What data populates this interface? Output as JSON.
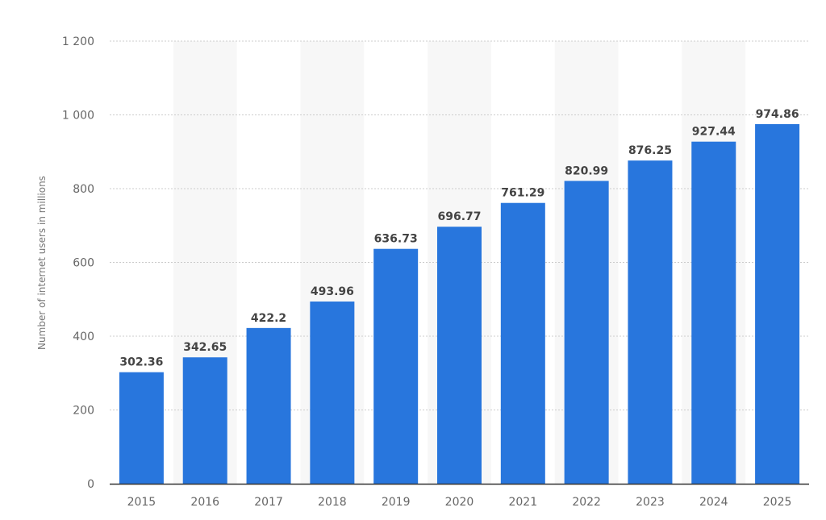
{
  "chart_data": {
    "type": "bar",
    "title": "",
    "xlabel": "",
    "ylabel": "Number of internet users in millions",
    "ylim": [
      0,
      1200
    ],
    "yticks": [
      0,
      200,
      400,
      600,
      800,
      1000,
      1200
    ],
    "ytick_labels": [
      "0",
      "200",
      "400",
      "600",
      "800",
      "1 000",
      "1 200"
    ],
    "grid": true,
    "categories": [
      "2015",
      "2016",
      "2017",
      "2018",
      "2019",
      "2020",
      "2021",
      "2022",
      "2023",
      "2024",
      "2025"
    ],
    "values": [
      302.36,
      342.65,
      422.2,
      493.96,
      636.73,
      696.77,
      761.29,
      820.99,
      876.25,
      927.44,
      974.86
    ],
    "data_labels": [
      "302.36",
      "342.65",
      "422.2",
      "493.96",
      "636.73",
      "696.77",
      "761.29",
      "820.99",
      "876.25",
      "927.44",
      "974.86"
    ],
    "colors": {
      "bar": "#2876dd",
      "band": "#f7f7f7",
      "grid": "#cccccc",
      "axis": "#333333"
    }
  }
}
